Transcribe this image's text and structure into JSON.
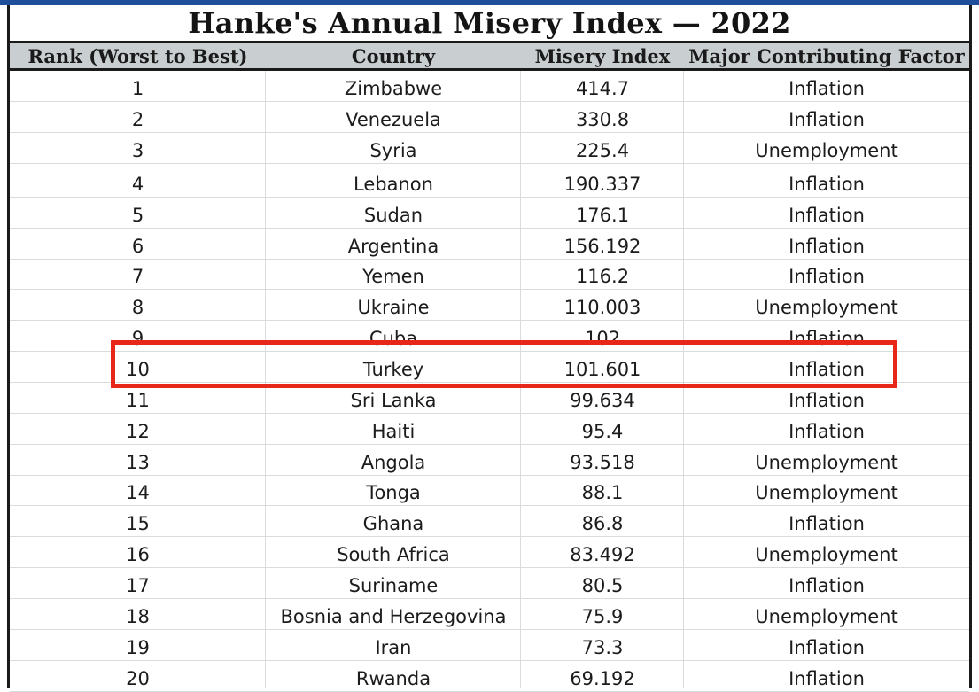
{
  "title": "Hanke's Annual Misery Index — 2022",
  "headers": {
    "rank": "Rank (Worst to Best)",
    "country": "Country",
    "index": "Misery Index",
    "factor": "Major Contributing Factor"
  },
  "rows": [
    {
      "rank": "1",
      "country": "Zimbabwe",
      "index": "414.7",
      "factor": "Inflation"
    },
    {
      "rank": "2",
      "country": "Venezuela",
      "index": "330.8",
      "factor": "Inflation"
    },
    {
      "rank": "3",
      "country": "Syria",
      "index": "225.4",
      "factor": "Unemployment"
    },
    {
      "rank": "4",
      "country": "Lebanon",
      "index": "190.337",
      "factor": "Inflation"
    },
    {
      "rank": "5",
      "country": "Sudan",
      "index": "176.1",
      "factor": "Inflation"
    },
    {
      "rank": "6",
      "country": "Argentina",
      "index": "156.192",
      "factor": "Inflation"
    },
    {
      "rank": "7",
      "country": "Yemen",
      "index": "116.2",
      "factor": "Inflation"
    },
    {
      "rank": "8",
      "country": "Ukraine",
      "index": "110.003",
      "factor": "Unemployment"
    },
    {
      "rank": "9",
      "country": "Cuba",
      "index": "102",
      "factor": "Inflation"
    },
    {
      "rank": "10",
      "country": "Turkey",
      "index": "101.601",
      "factor": "Inflation"
    },
    {
      "rank": "11",
      "country": "Sri Lanka",
      "index": "99.634",
      "factor": "Inflation"
    },
    {
      "rank": "12",
      "country": "Haiti",
      "index": "95.4",
      "factor": "Inflation"
    },
    {
      "rank": "13",
      "country": "Angola",
      "index": "93.518",
      "factor": "Unemployment"
    },
    {
      "rank": "14",
      "country": "Tonga",
      "index": "88.1",
      "factor": "Unemployment"
    },
    {
      "rank": "15",
      "country": "Ghana",
      "index": "86.8",
      "factor": "Inflation"
    },
    {
      "rank": "16",
      "country": "South Africa",
      "index": "83.492",
      "factor": "Unemployment"
    },
    {
      "rank": "17",
      "country": "Suriname",
      "index": "80.5",
      "factor": "Inflation"
    },
    {
      "rank": "18",
      "country": "Bosnia and Herzegovina",
      "index": "75.9",
      "factor": "Unemployment"
    },
    {
      "rank": "19",
      "country": "Iran",
      "index": "73.3",
      "factor": "Inflation"
    },
    {
      "rank": "20",
      "country": "Rwanda",
      "index": "69.192",
      "factor": "Inflation"
    }
  ],
  "highlighted_rank": "10",
  "colors": {
    "highlight": "#e8271b",
    "header_bg": "#c9ced1",
    "top_strip": "#1f4e9c"
  }
}
